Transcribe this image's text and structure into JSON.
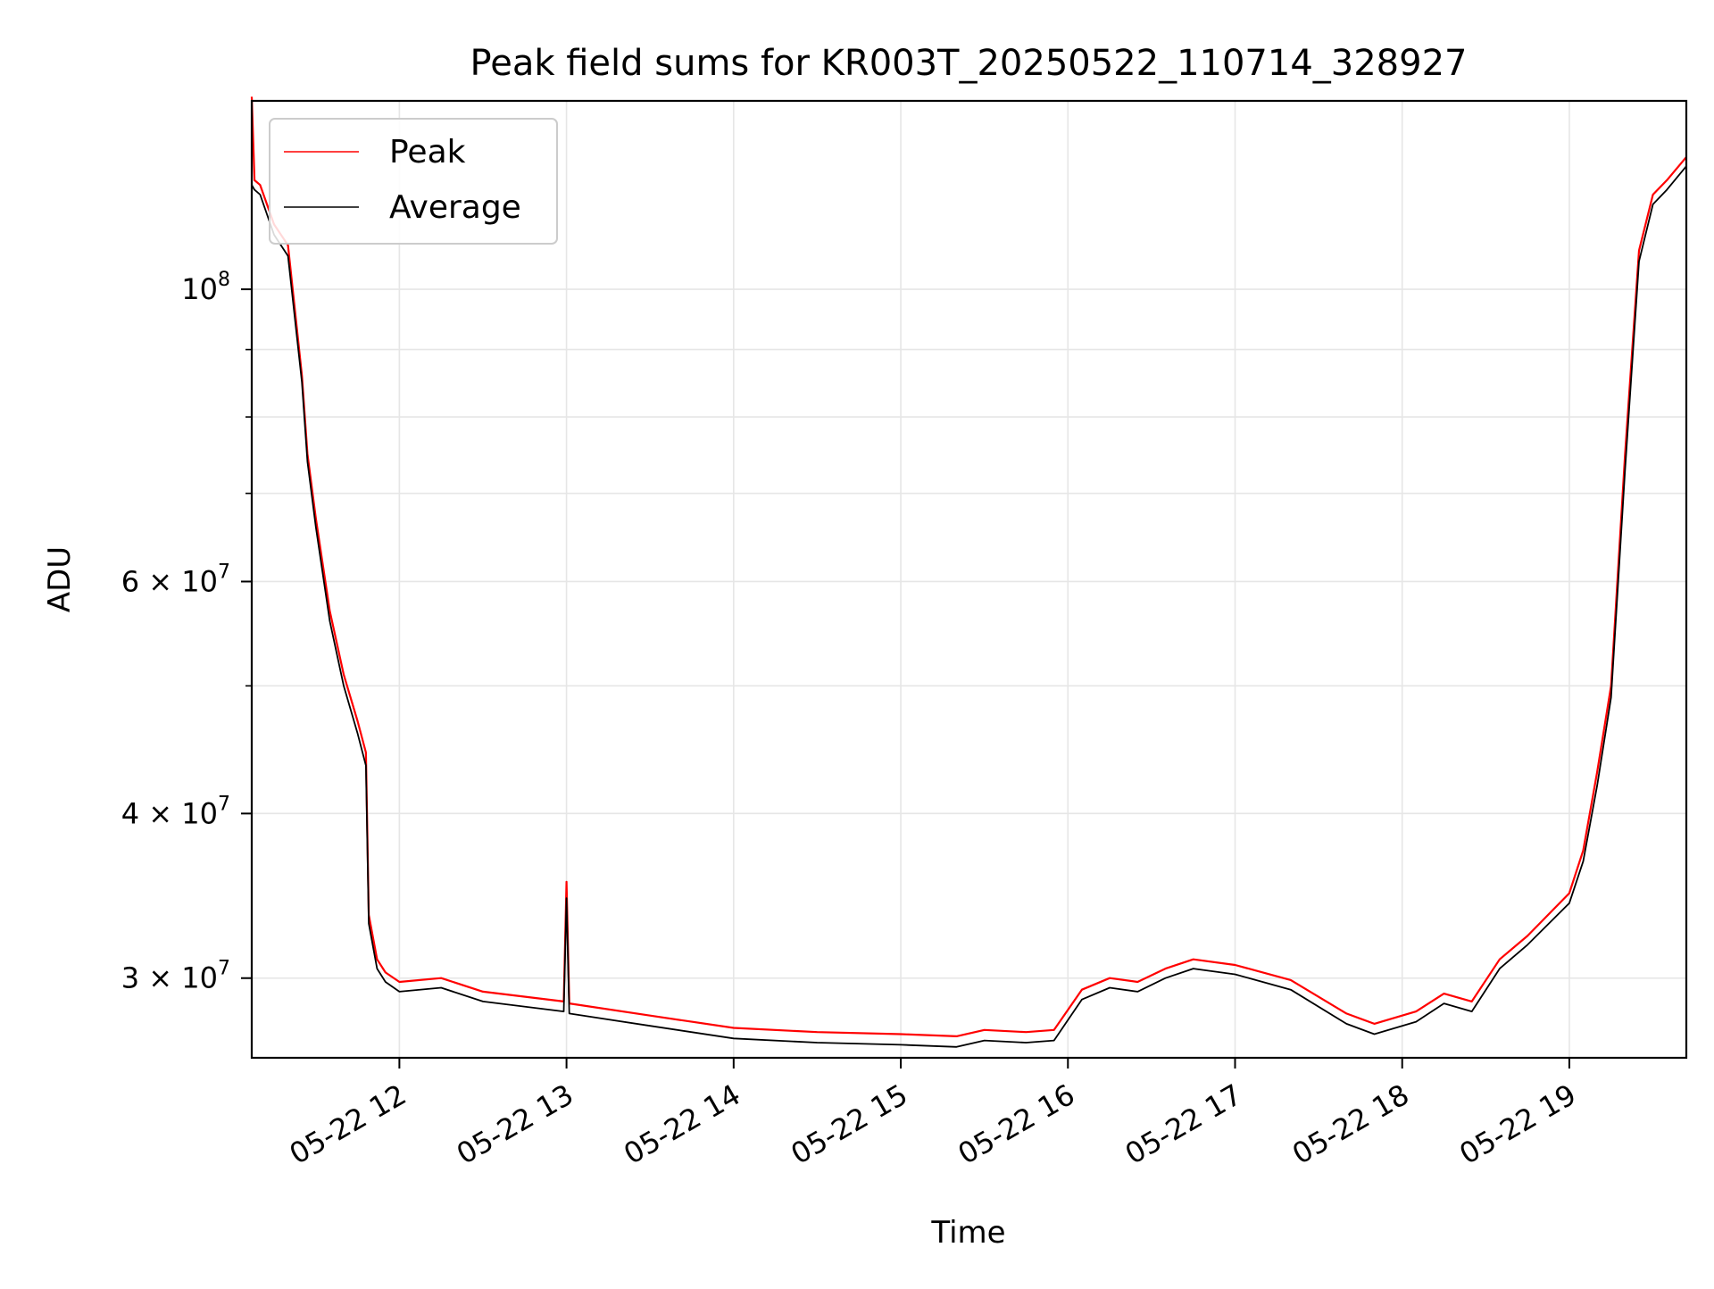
{
  "chart_data": {
    "type": "line",
    "title": "Peak field sums for KR003T_20250522_110714_328927",
    "xlabel": "Time",
    "ylabel": "ADU",
    "x_scale": "time",
    "y_scale": "log",
    "xlim": [
      "2025-05-22T11:07",
      "2025-05-22T19:42"
    ],
    "ylim": [
      26100000,
      139000000
    ],
    "grid": true,
    "legend_position": "top-left",
    "x_ticks": [
      {
        "label": "05-22 12",
        "value": "2025-05-22T12:00"
      },
      {
        "label": "05-22 13",
        "value": "2025-05-22T13:00"
      },
      {
        "label": "05-22 14",
        "value": "2025-05-22T14:00"
      },
      {
        "label": "05-22 15",
        "value": "2025-05-22T15:00"
      },
      {
        "label": "05-22 16",
        "value": "2025-05-22T16:00"
      },
      {
        "label": "05-22 17",
        "value": "2025-05-22T17:00"
      },
      {
        "label": "05-22 18",
        "value": "2025-05-22T18:00"
      },
      {
        "label": "05-22 19",
        "value": "2025-05-22T19:00"
      }
    ],
    "y_major_ticks": [
      {
        "label": "10",
        "exp": "8",
        "value": 100000000
      },
      {
        "label": "6 × 10",
        "exp": "7",
        "value": 60000000
      },
      {
        "label": "4 × 10",
        "exp": "7",
        "value": 40000000
      },
      {
        "label": "3 × 10",
        "exp": "7",
        "value": 30000000
      }
    ],
    "y_minor_ticks": [
      90000000,
      80000000,
      70000000,
      50000000
    ],
    "series": [
      {
        "name": "Peak",
        "color": "#ff0000",
        "x": [
          "2025-05-22T11:07",
          "2025-05-22T11:08",
          "2025-05-22T11:10",
          "2025-05-22T11:15",
          "2025-05-22T11:20",
          "2025-05-22T11:25",
          "2025-05-22T11:27",
          "2025-05-22T11:30",
          "2025-05-22T11:35",
          "2025-05-22T11:40",
          "2025-05-22T11:45",
          "2025-05-22T11:48",
          "2025-05-22T11:49",
          "2025-05-22T11:52",
          "2025-05-22T11:55",
          "2025-05-22T12:00",
          "2025-05-22T12:15",
          "2025-05-22T12:30",
          "2025-05-22T12:59",
          "2025-05-22T13:00",
          "2025-05-22T13:01",
          "2025-05-22T13:30",
          "2025-05-22T14:00",
          "2025-05-22T14:30",
          "2025-05-22T15:00",
          "2025-05-22T15:20",
          "2025-05-22T15:30",
          "2025-05-22T15:45",
          "2025-05-22T15:55",
          "2025-05-22T16:05",
          "2025-05-22T16:15",
          "2025-05-22T16:25",
          "2025-05-22T16:35",
          "2025-05-22T16:45",
          "2025-05-22T17:00",
          "2025-05-22T17:20",
          "2025-05-22T17:40",
          "2025-05-22T17:50",
          "2025-05-22T18:05",
          "2025-05-22T18:15",
          "2025-05-22T18:25",
          "2025-05-22T18:35",
          "2025-05-22T18:45",
          "2025-05-22T19:00",
          "2025-05-22T19:05",
          "2025-05-22T19:10",
          "2025-05-22T19:15",
          "2025-05-22T19:20",
          "2025-05-22T19:25",
          "2025-05-22T19:30",
          "2025-05-22T19:35",
          "2025-05-22T19:42"
        ],
        "y": [
          140000000,
          121000000,
          120000000,
          112000000,
          108000000,
          86000000,
          75000000,
          67000000,
          57000000,
          51000000,
          47000000,
          44500000,
          33500000,
          31000000,
          30300000,
          29800000,
          30000000,
          29300000,
          28800000,
          35500000,
          28700000,
          28100000,
          27500000,
          27300000,
          27200000,
          27100000,
          27400000,
          27300000,
          27400000,
          29400000,
          30000000,
          29800000,
          30500000,
          31000000,
          30700000,
          29900000,
          28200000,
          27700000,
          28300000,
          29200000,
          28800000,
          31000000,
          32300000,
          34800000,
          37500000,
          43000000,
          50000000,
          75000000,
          107000000,
          118000000,
          121000000,
          126000000
        ]
      },
      {
        "name": "Average",
        "color": "#000000",
        "x": [
          "2025-05-22T11:07",
          "2025-05-22T11:08",
          "2025-05-22T11:10",
          "2025-05-22T11:15",
          "2025-05-22T11:20",
          "2025-05-22T11:25",
          "2025-05-22T11:27",
          "2025-05-22T11:30",
          "2025-05-22T11:35",
          "2025-05-22T11:40",
          "2025-05-22T11:45",
          "2025-05-22T11:48",
          "2025-05-22T11:49",
          "2025-05-22T11:52",
          "2025-05-22T11:55",
          "2025-05-22T12:00",
          "2025-05-22T12:15",
          "2025-05-22T12:30",
          "2025-05-22T12:59",
          "2025-05-22T13:00",
          "2025-05-22T13:01",
          "2025-05-22T13:30",
          "2025-05-22T14:00",
          "2025-05-22T14:30",
          "2025-05-22T15:00",
          "2025-05-22T15:20",
          "2025-05-22T15:30",
          "2025-05-22T15:45",
          "2025-05-22T15:55",
          "2025-05-22T16:05",
          "2025-05-22T16:15",
          "2025-05-22T16:25",
          "2025-05-22T16:35",
          "2025-05-22T16:45",
          "2025-05-22T17:00",
          "2025-05-22T17:20",
          "2025-05-22T17:40",
          "2025-05-22T17:50",
          "2025-05-22T18:05",
          "2025-05-22T18:15",
          "2025-05-22T18:25",
          "2025-05-22T18:35",
          "2025-05-22T18:45",
          "2025-05-22T19:00",
          "2025-05-22T19:05",
          "2025-05-22T19:10",
          "2025-05-22T19:15",
          "2025-05-22T19:20",
          "2025-05-22T19:25",
          "2025-05-22T19:30",
          "2025-05-22T19:35",
          "2025-05-22T19:42"
        ],
        "y": [
          120000000,
          119000000,
          118000000,
          110000000,
          106000000,
          85000000,
          74000000,
          66000000,
          56000000,
          50000000,
          46000000,
          43500000,
          33000000,
          30500000,
          29800000,
          29300000,
          29500000,
          28800000,
          28300000,
          34500000,
          28200000,
          27600000,
          27000000,
          26800000,
          26700000,
          26600000,
          26900000,
          26800000,
          26900000,
          28900000,
          29500000,
          29300000,
          30000000,
          30500000,
          30200000,
          29400000,
          27700000,
          27200000,
          27800000,
          28700000,
          28300000,
          30500000,
          31800000,
          34200000,
          36800000,
          42000000,
          49000000,
          73000000,
          105000000,
          116000000,
          119000000,
          124000000
        ]
      }
    ]
  }
}
